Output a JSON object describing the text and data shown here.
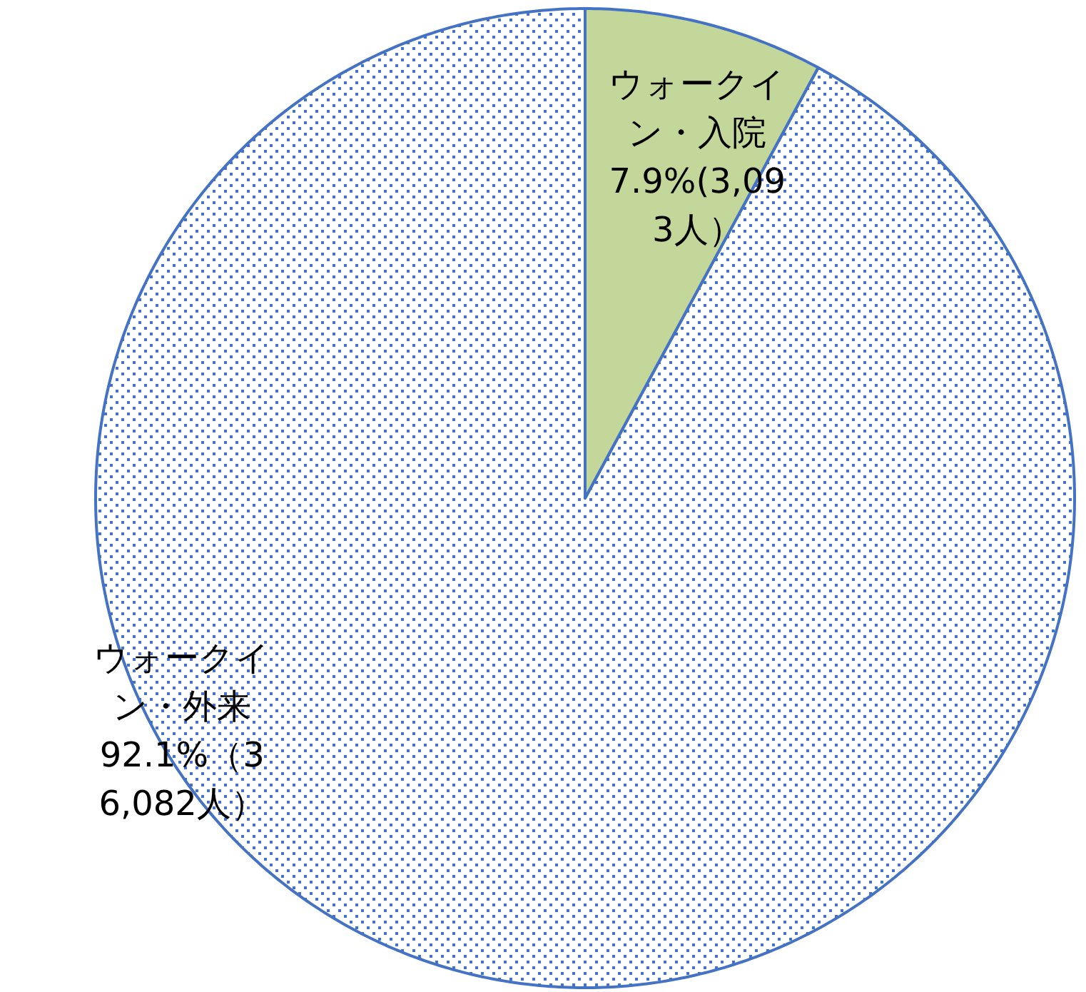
{
  "chart_data": {
    "type": "pie",
    "categories": [
      "ウォークイン・入院",
      "ウォークイン・外来"
    ],
    "values": [
      7.9,
      92.1
    ],
    "value_labels": [
      "7.9%(3,093人）",
      "92.1%（36,082人）"
    ],
    "colors": [
      "#c4d79b",
      "#4472c4"
    ]
  }
}
